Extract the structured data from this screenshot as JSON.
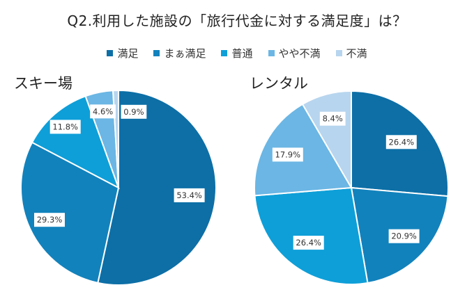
{
  "title": "Q2.利用した施設の「旅行代金に対する満足度」は？",
  "legend": [
    {
      "label": "満足",
      "color": "#0D6FA6"
    },
    {
      "label": "まぁ満足",
      "color": "#1282BC"
    },
    {
      "label": "普通",
      "color": "#0E9FD8"
    },
    {
      "label": "やや不満",
      "color": "#6BB6E4"
    },
    {
      "label": "不満",
      "color": "#B7D5EE"
    }
  ],
  "chart_data": [
    {
      "type": "pie",
      "title": "スキー場",
      "categories": [
        "満足",
        "まぁ満足",
        "普通",
        "やや不満",
        "不満"
      ],
      "values": [
        53.4,
        29.3,
        11.8,
        4.6,
        0.9
      ],
      "labels": [
        "53.4%",
        "29.3%",
        "11.8%",
        "4.6%",
        "0.9%"
      ]
    },
    {
      "type": "pie",
      "title": "レンタル",
      "categories": [
        "満足",
        "まぁ満足",
        "普通",
        "やや不満",
        "不満"
      ],
      "values": [
        26.4,
        20.9,
        26.4,
        17.9,
        8.4
      ],
      "labels": [
        "26.4%",
        "20.9%",
        "26.4%",
        "17.9%",
        "8.4%"
      ]
    }
  ]
}
